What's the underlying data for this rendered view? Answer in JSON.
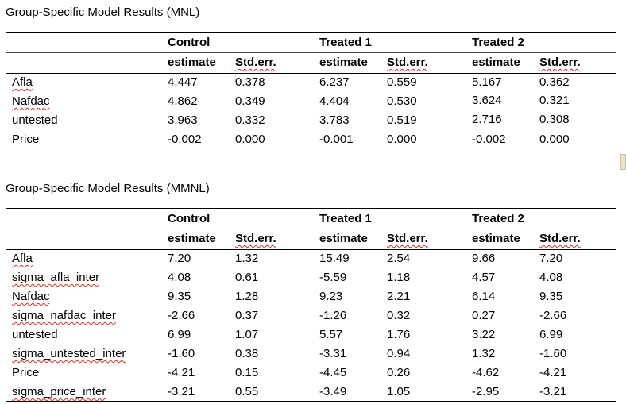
{
  "table1": {
    "title": "Group-Specific Model Results (MNL)",
    "groups": [
      "Control",
      "Treated 1",
      "Treated 2"
    ],
    "subheaders": [
      "estimate",
      "Std.err.",
      "estimate",
      "Std.err.",
      "estimate",
      "Std.err."
    ],
    "rows": [
      {
        "label": "Afla",
        "values": [
          "4.447",
          "0.378",
          "6.237",
          "0.559",
          "5.167",
          "0.362"
        ]
      },
      {
        "label": "Nafdac",
        "values": [
          "4.862",
          "0.349",
          "4.404",
          "0.530",
          "3.624",
          "0.321"
        ]
      },
      {
        "label": "untested",
        "values": [
          "3.963",
          "0.332",
          "3.783",
          "0.519",
          "2.716",
          "0.308"
        ]
      },
      {
        "label": "Price",
        "values": [
          "-0.002",
          "0.000",
          "-0.001",
          "0.000",
          "-0.002",
          "0.000"
        ]
      }
    ]
  },
  "table2": {
    "title": "Group-Specific Model Results (MMNL)",
    "groups": [
      "Control",
      "Treated 1",
      "Treated 2"
    ],
    "subheaders": [
      "estimate",
      "Std.err.",
      "estimate",
      "Std.err.",
      "estimate",
      "Std.err."
    ],
    "rows": [
      {
        "label": "Afla",
        "values": [
          "7.20",
          "1.32",
          "15.49",
          "2.54",
          "9.66",
          "7.20"
        ]
      },
      {
        "label": "sigma_afla_inter",
        "values": [
          "4.08",
          "0.61",
          "-5.59",
          "1.18",
          "4.57",
          "4.08"
        ]
      },
      {
        "label": "Nafdac",
        "values": [
          "9.35",
          "1.28",
          "9.23",
          "2.21",
          "6.14",
          "9.35"
        ]
      },
      {
        "label": "sigma_nafdac_inter",
        "values": [
          "-2.66",
          "0.37",
          "-1.26",
          "0.32",
          "0.27",
          "-2.66"
        ]
      },
      {
        "label": "untested",
        "values": [
          "6.99",
          "1.07",
          "5.57",
          "1.76",
          "3.22",
          "6.99"
        ]
      },
      {
        "label": "sigma_untested_inter",
        "values": [
          "-1.60",
          "0.38",
          "-3.31",
          "0.94",
          "1.32",
          "-1.60"
        ]
      },
      {
        "label": "Price",
        "values": [
          "-4.21",
          "0.15",
          "-4.45",
          "0.26",
          "-4.62",
          "-4.21"
        ]
      },
      {
        "label": "sigma_price_inter",
        "values": [
          "-3.21",
          "0.55",
          "-3.49",
          "1.05",
          "-2.95",
          "-3.21"
        ]
      }
    ]
  }
}
